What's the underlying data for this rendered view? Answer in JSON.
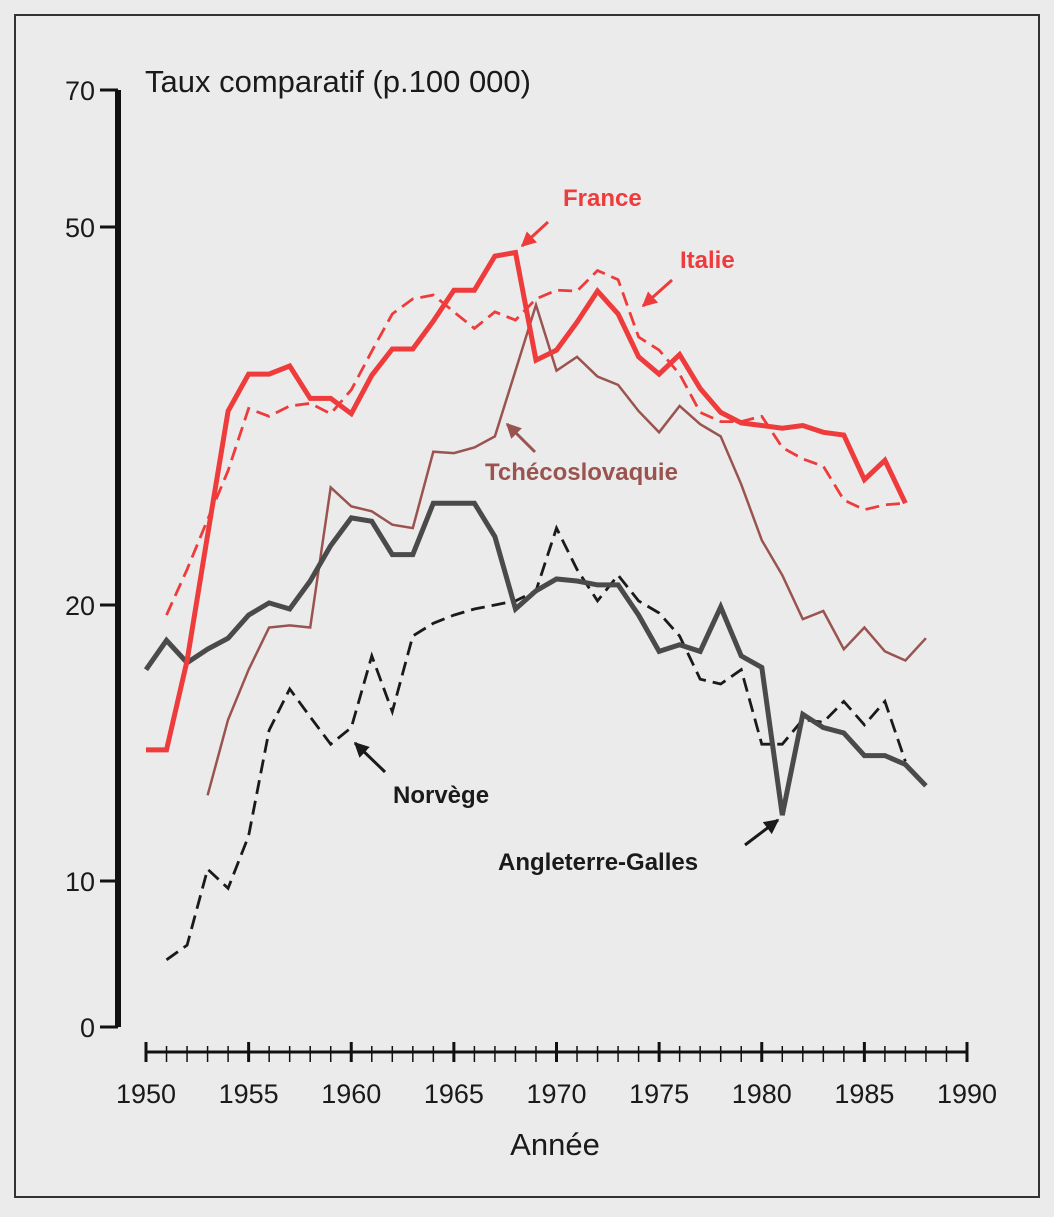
{
  "chart_data": {
    "type": "line",
    "title": "",
    "ylabel": "Taux comparatif (p.100 000)",
    "xlabel": "Année",
    "xlim": [
      1950,
      1990
    ],
    "ylim": [
      0,
      70
    ],
    "y_scale": "log-like (non-linear)",
    "y_ticks": [
      0,
      10,
      20,
      50,
      70
    ],
    "x_ticks": [
      1950,
      1955,
      1960,
      1965,
      1970,
      1975,
      1980,
      1985,
      1990
    ],
    "grid": false,
    "colors": {
      "background": "#ecebeb",
      "red": "#ee3b3b",
      "brown": "#9a5450",
      "dark": "#4a4a4a",
      "black": "#1a1a1a"
    },
    "series": [
      {
        "name": "France",
        "style": "solid-thick",
        "color": "#ee3b3b",
        "x_start": 1950,
        "values": [
          13.9,
          13.9,
          17.4,
          23.7,
          32.0,
          35.0,
          35.0,
          35.7,
          33.0,
          33.0,
          31.8,
          34.9,
          37.2,
          37.2,
          39.8,
          42.9,
          42.9,
          46.6,
          47.0,
          36.2,
          37.1,
          39.7,
          42.8,
          40.5,
          36.5,
          35.0,
          36.7,
          33.8,
          31.9,
          31.1,
          30.9,
          30.7,
          30.9,
          30.4,
          30.2,
          27.1,
          28.4,
          25.6
        ]
      },
      {
        "name": "Italie",
        "style": "dashed",
        "color": "#ee3b3b",
        "x_start": 1951,
        "values": [
          19.5,
          21.8,
          24.6,
          27.7,
          32.2,
          31.6,
          32.4,
          32.6,
          31.8,
          33.7,
          37.0,
          40.5,
          42.0,
          42.4,
          40.7,
          39.1,
          40.7,
          39.9,
          42.0,
          42.9,
          42.8,
          45.0,
          44.0,
          38.3,
          37.1,
          35.0,
          31.9,
          31.2,
          31.2,
          31.6,
          29.3,
          28.5,
          28.0,
          25.8,
          25.2,
          25.5,
          25.6
        ]
      },
      {
        "name": "Tchécoslovaquie",
        "style": "solid-thin",
        "color": "#9a5450",
        "x_start": 1953,
        "values": [
          12.4,
          15.0,
          17.0,
          18.9,
          19.0,
          18.9,
          26.6,
          25.4,
          25.1,
          24.3,
          24.1,
          29.0,
          28.9,
          29.3,
          30.1,
          35.3,
          41.4,
          35.3,
          36.5,
          34.8,
          34.1,
          32.0,
          30.4,
          32.4,
          31.0,
          30.1,
          26.8,
          23.4,
          21.5,
          19.3,
          19.7,
          17.9,
          18.9,
          17.8,
          17.4,
          18.4
        ]
      },
      {
        "name": "Angleterre-Galles",
        "style": "solid-thick",
        "color": "#4a4a4a",
        "x_start": 1950,
        "values": [
          17.0,
          18.3,
          17.3,
          17.9,
          18.4,
          19.5,
          20.1,
          19.8,
          21.2,
          23.1,
          24.7,
          24.5,
          22.6,
          22.6,
          25.6,
          25.6,
          25.6,
          23.6,
          19.8,
          20.7,
          21.3,
          21.2,
          21.0,
          21.0,
          19.5,
          17.8,
          18.1,
          17.8,
          19.9,
          17.6,
          17.1,
          11.8,
          15.2,
          14.7,
          14.5,
          13.7,
          13.7,
          13.4,
          12.7
        ]
      },
      {
        "name": "Norvège",
        "style": "dashed",
        "color": "#1a1a1a",
        "x_start": 1951,
        "values": [
          4.6,
          5.6,
          10.3,
          9.5,
          11.2,
          14.6,
          16.2,
          15.1,
          14.1,
          14.7,
          17.6,
          15.3,
          18.5,
          19.1,
          19.5,
          19.8,
          20.0,
          20.2,
          20.7,
          24.1,
          21.8,
          20.2,
          21.5,
          20.2,
          19.6,
          18.5,
          16.6,
          16.4,
          17.0,
          14.1,
          14.1,
          15.0,
          14.9,
          15.7,
          14.8,
          15.7,
          13.5
        ]
      }
    ],
    "annotations": [
      {
        "text": "France",
        "series": "France"
      },
      {
        "text": "Italie",
        "series": "Italie"
      },
      {
        "text": "Tchécoslovaquie",
        "series": "Tchécoslovaquie"
      },
      {
        "text": "Norvège",
        "series": "Norvège"
      },
      {
        "text": "Angleterre-Galles",
        "series": "Angleterre-Galles"
      }
    ]
  }
}
